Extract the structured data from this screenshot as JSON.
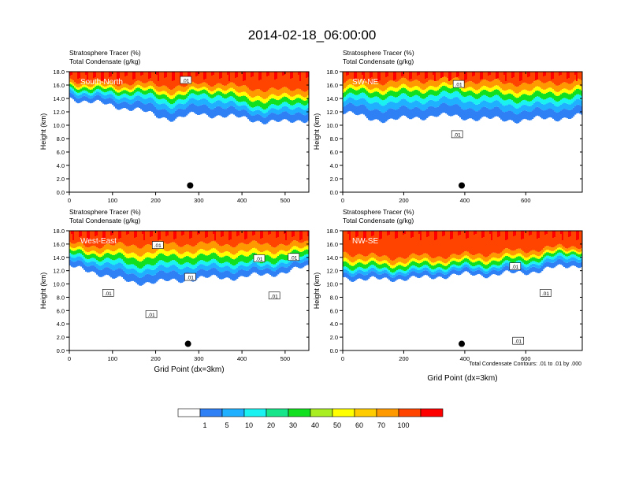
{
  "figure": {
    "title": "2014-02-18_06:00:00",
    "footnote": "Total Condensate Contours: .01 to .01 by .000"
  },
  "colorbar": {
    "colors": [
      "#ffffff",
      "#2f7ff5",
      "#1fb0ff",
      "#19f2f0",
      "#16e58a",
      "#10e020",
      "#a8ee20",
      "#ffff00",
      "#ffcc00",
      "#ff9900",
      "#ff4400",
      "#ff0000"
    ],
    "labels": [
      "1",
      "5",
      "10",
      "20",
      "30",
      "40",
      "50",
      "60",
      "70",
      "100"
    ]
  },
  "chart_data": [
    {
      "type": "heatmap",
      "panel_label": "South-North",
      "title_line1": "Stratosphere Tracer   (%)",
      "title_line2": "Total Condensate   (g/kg)",
      "ylabel": "Height (km)",
      "xlabel": "",
      "xlim": [
        0,
        555
      ],
      "ylim": [
        0,
        18
      ],
      "xticks": [
        "0",
        "100",
        "200",
        "300",
        "400",
        "500"
      ],
      "yticks": [
        "0.0",
        "2.0",
        "4.0",
        "6.0",
        "8.0",
        "10.0",
        "12.0",
        "14.0",
        "16.0",
        "18.0"
      ],
      "profile": [
        [
          0,
          14.0,
          15.6,
          16.8
        ],
        [
          50,
          13.5,
          15.0,
          16.5
        ],
        [
          100,
          12.8,
          14.8,
          16.2
        ],
        [
          150,
          12.5,
          14.8,
          16.4
        ],
        [
          200,
          11.3,
          14.2,
          16.0
        ],
        [
          240,
          11.0,
          13.6,
          15.8
        ],
        [
          270,
          11.4,
          14.0,
          15.8
        ],
        [
          300,
          11.6,
          14.6,
          16.2
        ],
        [
          350,
          11.5,
          14.5,
          16.3
        ],
        [
          400,
          11.0,
          13.2,
          15.6
        ],
        [
          450,
          10.6,
          12.8,
          15.4
        ],
        [
          500,
          10.4,
          13.0,
          15.2
        ],
        [
          555,
          11.0,
          13.6,
          15.6
        ]
      ],
      "contour_labels": [
        {
          "text": ".01",
          "x": 270,
          "y": 16.7
        }
      ],
      "marker": {
        "x": 280,
        "y": 1.0
      }
    },
    {
      "type": "heatmap",
      "panel_label": "SW-NE",
      "title_line1": "Stratosphere Tracer   (%)",
      "title_line2": "Total Condensate   (g/kg)",
      "ylabel": "Height (km)",
      "xlabel": "",
      "xlim": [
        0,
        785
      ],
      "ylim": [
        0,
        18
      ],
      "xticks": [
        "0",
        "200",
        "400",
        "600"
      ],
      "yticks": [
        "0.0",
        "2.0",
        "4.0",
        "6.0",
        "8.0",
        "10.0",
        "12.0",
        "14.0",
        "16.0",
        "18.0"
      ],
      "profile": [
        [
          0,
          12.0,
          14.5,
          16.6
        ],
        [
          80,
          11.0,
          14.4,
          16.4
        ],
        [
          150,
          10.8,
          14.2,
          16.5
        ],
        [
          220,
          11.0,
          14.3,
          16.6
        ],
        [
          300,
          11.5,
          14.6,
          16.8
        ],
        [
          380,
          11.2,
          14.8,
          16.8
        ],
        [
          450,
          11.0,
          14.2,
          16.5
        ],
        [
          520,
          10.8,
          14.0,
          16.4
        ],
        [
          600,
          10.8,
          13.6,
          16.2
        ],
        [
          680,
          11.0,
          14.0,
          16.4
        ],
        [
          785,
          11.4,
          14.2,
          16.5
        ]
      ],
      "contour_labels": [
        {
          "text": ".01",
          "x": 375,
          "y": 8.6
        },
        {
          "text": ".01",
          "x": 380,
          "y": 16.1
        }
      ],
      "marker": {
        "x": 390,
        "y": 1.0
      }
    },
    {
      "type": "heatmap",
      "panel_label": "West-East",
      "title_line1": "Stratosphere Tracer   (%)",
      "title_line2": "Total Condensate   (g/kg)",
      "ylabel": "Height (km)",
      "xlabel": "Grid Point (dx=3km)",
      "xlim": [
        0,
        555
      ],
      "ylim": [
        0,
        18
      ],
      "xticks": [
        "0",
        "100",
        "200",
        "300",
        "400",
        "500"
      ],
      "yticks": [
        "0.0",
        "2.0",
        "4.0",
        "6.0",
        "8.0",
        "10.0",
        "12.0",
        "14.0",
        "16.0",
        "18.0"
      ],
      "profile": [
        [
          0,
          12.5,
          14.4,
          16.0
        ],
        [
          50,
          12.0,
          14.0,
          15.8
        ],
        [
          100,
          10.8,
          13.6,
          15.8
        ],
        [
          150,
          10.3,
          12.8,
          15.8
        ],
        [
          200,
          10.2,
          13.0,
          16.0
        ],
        [
          250,
          10.6,
          13.4,
          16.0
        ],
        [
          300,
          10.8,
          13.2,
          16.0
        ],
        [
          350,
          11.0,
          13.4,
          16.0
        ],
        [
          400,
          11.0,
          13.2,
          16.0
        ],
        [
          450,
          11.4,
          13.2,
          16.0
        ],
        [
          500,
          11.8,
          13.8,
          16.0
        ],
        [
          555,
          12.6,
          14.2,
          16.2
        ]
      ],
      "contour_labels": [
        {
          "text": ".01",
          "x": 90,
          "y": 8.6
        },
        {
          "text": ".01",
          "x": 190,
          "y": 5.4
        },
        {
          "text": ".01",
          "x": 205,
          "y": 15.8
        },
        {
          "text": ".01",
          "x": 280,
          "y": 11.0
        },
        {
          "text": ".01",
          "x": 440,
          "y": 13.8
        },
        {
          "text": ".01",
          "x": 475,
          "y": 8.2
        },
        {
          "text": ".01",
          "x": 520,
          "y": 14.0
        }
      ],
      "marker": {
        "x": 275,
        "y": 1.0
      }
    },
    {
      "type": "heatmap",
      "panel_label": "NW-SE",
      "title_line1": "Stratosphere Tracer   (%)",
      "title_line2": "Total Condensate   (g/kg)",
      "ylabel": "Height (km)",
      "xlabel": "Grid Point (dx=3km)",
      "xlim": [
        0,
        785
      ],
      "ylim": [
        0,
        18
      ],
      "xticks": [
        "0",
        "200",
        "400",
        "600"
      ],
      "yticks": [
        "0.0",
        "2.0",
        "4.0",
        "6.0",
        "8.0",
        "10.0",
        "12.0",
        "14.0",
        "16.0",
        "18.0"
      ],
      "profile": [
        [
          0,
          11.0,
          12.6,
          14.8
        ],
        [
          80,
          10.6,
          12.4,
          14.2
        ],
        [
          160,
          10.8,
          12.2,
          14.0
        ],
        [
          240,
          10.8,
          12.4,
          14.2
        ],
        [
          320,
          11.2,
          12.6,
          14.2
        ],
        [
          400,
          11.4,
          12.8,
          14.4
        ],
        [
          480,
          11.4,
          12.8,
          14.6
        ],
        [
          560,
          11.6,
          13.2,
          15.0
        ],
        [
          640,
          12.0,
          13.6,
          15.2
        ],
        [
          720,
          12.6,
          14.4,
          15.6
        ],
        [
          785,
          13.0,
          14.6,
          15.8
        ]
      ],
      "contour_labels": [
        {
          "text": ".01",
          "x": 565,
          "y": 12.6
        },
        {
          "text": ".01",
          "x": 665,
          "y": 8.6
        },
        {
          "text": ".01",
          "x": 575,
          "y": 1.4
        }
      ],
      "marker": {
        "x": 390,
        "y": 1.0
      }
    }
  ]
}
